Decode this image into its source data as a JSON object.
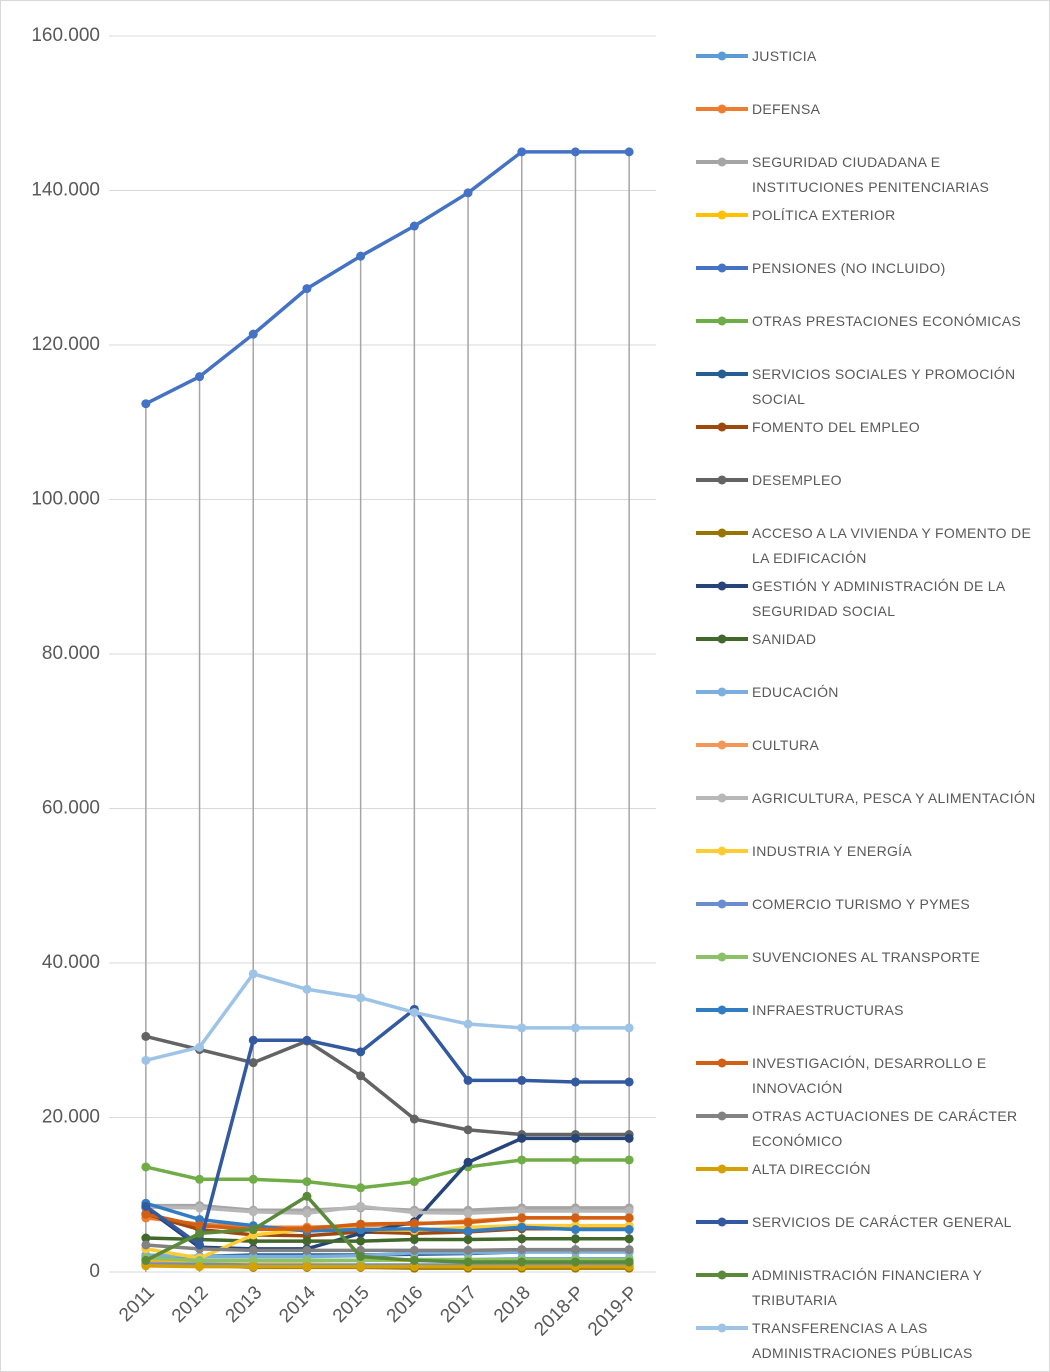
{
  "chart_data": {
    "type": "line",
    "categories": [
      "2011",
      "2012",
      "2013",
      "2014",
      "2015",
      "2016",
      "2017",
      "2018",
      "2018-P",
      "2019-P"
    ],
    "ylim": [
      0,
      160000
    ],
    "yticks": [
      0,
      {
        "value": 20000,
        "label": "20.000"
      },
      {
        "value": 40000,
        "label": "40.000"
      },
      {
        "value": 60000,
        "label": "60.000"
      },
      {
        "value": 80000,
        "label": "80.000"
      },
      {
        "value": 100000,
        "label": "100.000"
      },
      {
        "value": 120000,
        "label": "120.000"
      },
      {
        "value": 140000,
        "label": "140.000"
      },
      {
        "value": 160000,
        "label": "160.000"
      }
    ],
    "grid": true,
    "drop_lines": true,
    "legend": "right",
    "series": [
      {
        "name": "JUSTICIA",
        "color": "#5b9bd5",
        "values": [
          1600,
          1500,
          1500,
          1500,
          1500,
          1600,
          1600,
          1700,
          1700,
          1700
        ]
      },
      {
        "name": "DEFENSA",
        "color": "#ed7d31",
        "values": [
          7000,
          6200,
          5800,
          5800,
          6000,
          6200,
          6600,
          7000,
          7000,
          7000
        ]
      },
      {
        "name": "SEGURIDAD CIUDADANA E INSTITUCIONES PENITENCIARIAS",
        "color": "#a5a5a5",
        "values": [
          8600,
          8600,
          8000,
          8000,
          8300,
          8000,
          8000,
          8300,
          8300,
          8300
        ]
      },
      {
        "name": "POLÍTICA EXTERIOR",
        "color": "#ffc000",
        "values": [
          1500,
          1400,
          1400,
          1400,
          1500,
          1500,
          1500,
          1500,
          1500,
          1500
        ]
      },
      {
        "name": "PENSIONES (NO INCLUIDO)",
        "color": "#4472c4",
        "values": [
          112400,
          115900,
          121400,
          127300,
          131500,
          135400,
          139700,
          145000,
          145000,
          145000
        ]
      },
      {
        "name": "OTRAS PRESTACIONES ECONÓMICAS",
        "color": "#70ad47",
        "values": [
          13600,
          12000,
          12000,
          11700,
          10900,
          11700,
          13600,
          14500,
          14500,
          14500
        ]
      },
      {
        "name": "SERVICIOS SOCIALES Y PROMOCIÓN SOCIAL",
        "color": "#255e91",
        "values": [
          2000,
          2000,
          2200,
          2200,
          2200,
          2300,
          2400,
          2600,
          2600,
          2600
        ]
      },
      {
        "name": "FOMENTO DEL EMPLEO",
        "color": "#9e480e",
        "values": [
          7500,
          5500,
          4800,
          4700,
          5200,
          5000,
          5200,
          5600,
          5600,
          5600
        ]
      },
      {
        "name": "DESEMPLEO",
        "color": "#636363",
        "values": [
          30500,
          28800,
          27100,
          29900,
          25400,
          19800,
          18400,
          17800,
          17800,
          17800
        ]
      },
      {
        "name": "ACCESO A LA VIVIENDA Y FOMENTO DE LA EDIFICACIÓN",
        "color": "#997300",
        "values": [
          1000,
          900,
          600,
          600,
          600,
          500,
          500,
          500,
          500,
          500
        ]
      },
      {
        "name": "GESTIÓN Y ADMINISTRACIÓN DE LA SEGURIDAD SOCIAL",
        "color": "#264478",
        "values": [
          8300,
          3200,
          3000,
          3000,
          5000,
          6500,
          14200,
          17300,
          17300,
          17300
        ]
      },
      {
        "name": "SANIDAD",
        "color": "#43682b",
        "values": [
          4400,
          4200,
          4000,
          4000,
          4000,
          4200,
          4200,
          4300,
          4300,
          4300
        ]
      },
      {
        "name": "EDUCACIÓN",
        "color": "#7cafdd",
        "values": [
          2200,
          2000,
          2000,
          2000,
          2100,
          2500,
          2500,
          2600,
          2600,
          2600
        ]
      },
      {
        "name": "CULTURA",
        "color": "#f1975a",
        "values": [
          1200,
          900,
          800,
          800,
          800,
          800,
          800,
          800,
          800,
          800
        ]
      },
      {
        "name": "AGRICULTURA, PESCA Y ALIMENTACIÓN",
        "color": "#b7b7b7",
        "values": [
          8400,
          8300,
          7800,
          7600,
          8500,
          7700,
          7600,
          7900,
          7900,
          7900
        ]
      },
      {
        "name": "INDUSTRIA Y ENERGÍA",
        "color": "#ffcd33",
        "values": [
          3000,
          1800,
          4800,
          5500,
          5500,
          5400,
          5800,
          6000,
          6000,
          6000
        ]
      },
      {
        "name": "COMERCIO TURISMO Y PYMES",
        "color": "#698ed0",
        "values": [
          1000,
          1000,
          900,
          900,
          900,
          900,
          900,
          900,
          900,
          900
        ]
      },
      {
        "name": "SUVENCIONES AL TRANSPORTE",
        "color": "#8cc168",
        "values": [
          1800,
          1500,
          1500,
          1500,
          1500,
          1600,
          1600,
          1600,
          1600,
          1600
        ]
      },
      {
        "name": "INFRAESTRUCTURAS",
        "color": "#327dc2",
        "values": [
          8900,
          6800,
          6000,
          5300,
          5500,
          5600,
          5300,
          5800,
          5500,
          5500
        ]
      },
      {
        "name": "INVESTIGACIÓN, DESARROLLO E INNOVACIÓN",
        "color": "#d26012",
        "values": [
          7500,
          6000,
          5500,
          5600,
          6200,
          6300,
          6400,
          7000,
          7000,
          7000
        ]
      },
      {
        "name": "OTRAS ACTUACIONES DE CARÁCTER ECONÓMICO",
        "color": "#828282",
        "values": [
          3500,
          3000,
          2800,
          2800,
          2800,
          2800,
          2800,
          2900,
          2900,
          2900
        ]
      },
      {
        "name": "ALTA DIRECCIÓN",
        "color": "#d5a100",
        "values": [
          800,
          700,
          700,
          700,
          700,
          700,
          700,
          700,
          700,
          700
        ]
      },
      {
        "name": "SERVICIOS DE CARÁCTER GENERAL",
        "color": "#335aa1",
        "values": [
          8500,
          3500,
          30000,
          30000,
          28500,
          34000,
          24800,
          24800,
          24600,
          24600
        ]
      },
      {
        "name": "ADMINISTRACIÓN FINANCIERA Y TRIBUTARIA",
        "color": "#5a8a39",
        "values": [
          1500,
          5000,
          5500,
          9800,
          2000,
          1500,
          1300,
          1300,
          1300,
          1300
        ]
      },
      {
        "name": "TRANSFERENCIAS A LAS ADMINISTRACIONES PÚBLICAS",
        "color": "#9dc3e6",
        "values": [
          27400,
          29100,
          38600,
          36600,
          35500,
          33600,
          32100,
          31600,
          31600,
          31600
        ]
      }
    ]
  }
}
